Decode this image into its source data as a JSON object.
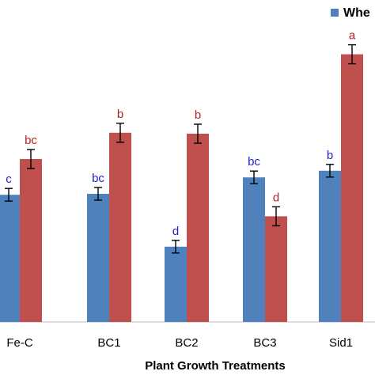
{
  "chart_data": {
    "type": "bar",
    "title": "",
    "xlabel": "Plant Growth Treatments",
    "ylabel": "",
    "categories": [
      "Fe-C",
      "BC1",
      "BC2",
      "BC3",
      "Sid1"
    ],
    "ylim": [
      0,
      100
    ],
    "series": [
      {
        "name": "Whe",
        "color": "#4f81bd",
        "values": [
          40.2,
          40.5,
          23.8,
          45.7,
          47.8
        ],
        "errors": [
          2.0,
          2.0,
          2.0,
          2.0,
          2.0
        ],
        "letters": [
          "c",
          "bc",
          "d",
          "bc",
          "b"
        ],
        "letter_color": "#1f1fc8"
      },
      {
        "name": "",
        "color": "#c0504d",
        "values": [
          51.5,
          59.8,
          59.5,
          33.4,
          84.6
        ],
        "errors": [
          3.0,
          3.0,
          3.0,
          3.0,
          3.0
        ],
        "letters": [
          "bc",
          "b",
          "b",
          "d",
          "a"
        ],
        "letter_color": "#b22222"
      }
    ],
    "legend": {
      "placement": "top-right",
      "entries": [
        "Whe"
      ]
    },
    "grid": false
  }
}
